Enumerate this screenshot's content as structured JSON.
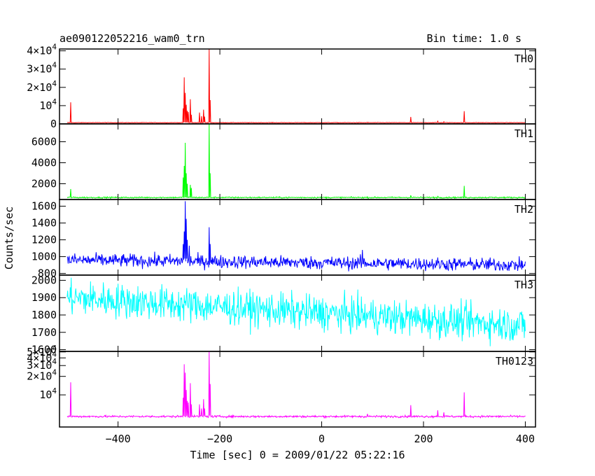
{
  "header": {
    "title": "ae090122052216_wam0_trn",
    "bin_time": "Bin time: 1.0 s"
  },
  "axes": {
    "xlabel": "Time [sec] 0 = 2009/01/22 05:22:16",
    "ylabel": "Counts/sec",
    "xlim": [
      -515,
      420
    ],
    "xticks": [
      -400,
      -200,
      0,
      200,
      400
    ],
    "xtick_labels": [
      "−400",
      "−200",
      "0",
      "200",
      "400"
    ]
  },
  "chart_data": {
    "type": "line",
    "x_range": [
      -500,
      400
    ],
    "bin": 1.0,
    "panels": [
      {
        "name": "TH0",
        "color": "#ff0000",
        "ylim": [
          0,
          41000
        ],
        "log": false,
        "ytick_values": [
          0,
          10000,
          20000,
          30000,
          40000
        ],
        "ytick_labels": [
          {
            "m": "0",
            "e": ""
          },
          {
            "m": "10",
            "e": "4"
          },
          {
            "m": "2×10",
            "e": "4"
          },
          {
            "m": "3×10",
            "e": "4"
          },
          {
            "m": "4×10",
            "e": "4"
          }
        ],
        "baseline": 700,
        "noise": 90,
        "trend": 0,
        "spikes": [
          [
            -493,
            11800
          ],
          [
            -272,
            8500
          ],
          [
            -270,
            25500
          ],
          [
            -268,
            17000
          ],
          [
            -266,
            10500
          ],
          [
            -264,
            7200
          ],
          [
            -262,
            6500
          ],
          [
            -258,
            13500
          ],
          [
            -256,
            5000
          ],
          [
            -240,
            6200
          ],
          [
            -236,
            4200
          ],
          [
            -232,
            7800
          ],
          [
            -230,
            4000
          ],
          [
            -221,
            41000
          ],
          [
            -219,
            13000
          ],
          [
            90,
            900
          ],
          [
            175,
            3800
          ],
          [
            228,
            1500
          ],
          [
            240,
            1200
          ],
          [
            280,
            7000
          ]
        ]
      },
      {
        "name": "TH1",
        "color": "#00ff00",
        "ylim": [
          500,
          7700
        ],
        "log": false,
        "ytick_values": [
          2000,
          4000,
          6000
        ],
        "ytick_labels": [
          {
            "m": "2000",
            "e": ""
          },
          {
            "m": "4000",
            "e": ""
          },
          {
            "m": "6000",
            "e": ""
          }
        ],
        "baseline": 690,
        "noise": 45,
        "trend": 0,
        "spikes": [
          [
            -493,
            1500
          ],
          [
            -272,
            2600
          ],
          [
            -270,
            3700
          ],
          [
            -268,
            5900
          ],
          [
            -266,
            3000
          ],
          [
            -264,
            2000
          ],
          [
            -258,
            1900
          ],
          [
            -256,
            1600
          ],
          [
            -221,
            7700
          ],
          [
            -219,
            3000
          ],
          [
            175,
            900
          ],
          [
            228,
            800
          ],
          [
            280,
            1800
          ]
        ]
      },
      {
        "name": "TH2",
        "color": "#0000ff",
        "ylim": [
          780,
          1680
        ],
        "log": false,
        "ytick_values": [
          800,
          1000,
          1200,
          1400,
          1600
        ],
        "ytick_labels": [
          {
            "m": "800",
            "e": ""
          },
          {
            "m": "1000",
            "e": ""
          },
          {
            "m": "1200",
            "e": ""
          },
          {
            "m": "1400",
            "e": ""
          },
          {
            "m": "1600",
            "e": ""
          }
        ],
        "baseline": 960,
        "noise": 55,
        "trend": -60,
        "spikes": [
          [
            -272,
            1150
          ],
          [
            -270,
            1300
          ],
          [
            -268,
            1660
          ],
          [
            -266,
            1450
          ],
          [
            -264,
            1200
          ],
          [
            -260,
            1130
          ],
          [
            -221,
            1350
          ],
          [
            -219,
            1150
          ],
          [
            80,
            1080
          ]
        ]
      },
      {
        "name": "TH3",
        "color": "#00ffff",
        "ylim": [
          1590,
          2030
        ],
        "log": false,
        "ytick_values": [
          1600,
          1700,
          1800,
          1900,
          2000
        ],
        "ytick_labels": [
          {
            "m": "1600",
            "e": ""
          },
          {
            "m": "1700",
            "e": ""
          },
          {
            "m": "1800",
            "e": ""
          },
          {
            "m": "1900",
            "e": ""
          },
          {
            "m": "2000",
            "e": ""
          }
        ],
        "baseline": 1900,
        "noise": 70,
        "trend": -160,
        "spikes": []
      },
      {
        "name": "TH0123",
        "color": "#ff00ff",
        "ylim": [
          3000,
          51000
        ],
        "log": true,
        "ytick_values": [
          10000,
          20000,
          30000,
          40000,
          50000
        ],
        "ytick_labels": [
          {
            "m": "10",
            "e": "4"
          },
          {
            "m": "2×10",
            "e": "4"
          },
          {
            "m": "3×10",
            "e": "4"
          },
          {
            "m": "4×10",
            "e": "4"
          },
          {
            "m": "5×10",
            "e": "4"
          }
        ],
        "baseline": 4450,
        "noise": 120,
        "trend": 0,
        "spikes": [
          [
            -493,
            16000
          ],
          [
            -272,
            9000
          ],
          [
            -270,
            31500
          ],
          [
            -268,
            23000
          ],
          [
            -266,
            12000
          ],
          [
            -264,
            8000
          ],
          [
            -262,
            7500
          ],
          [
            -258,
            15500
          ],
          [
            -256,
            7000
          ],
          [
            -240,
            7000
          ],
          [
            -236,
            6000
          ],
          [
            -232,
            8500
          ],
          [
            -230,
            6000
          ],
          [
            -221,
            51000
          ],
          [
            -219,
            15000
          ],
          [
            90,
            4900
          ],
          [
            175,
            6800
          ],
          [
            228,
            5600
          ],
          [
            240,
            5200
          ],
          [
            280,
            11000
          ]
        ]
      }
    ]
  }
}
